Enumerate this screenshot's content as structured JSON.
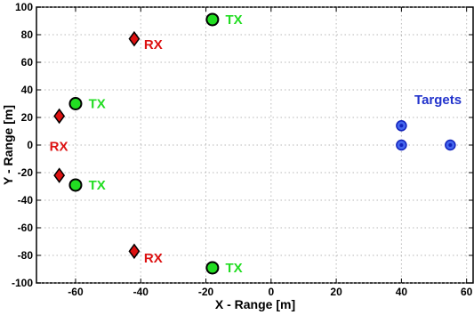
{
  "chart_data": {
    "type": "scatter",
    "xlabel": "X - Range [m]",
    "ylabel": "Y - Range [m]",
    "xlim": [
      -72,
      62
    ],
    "ylim": [
      -100,
      100
    ],
    "xticks": [
      -60,
      -40,
      -20,
      0,
      20,
      40,
      60
    ],
    "yticks": [
      -100,
      -80,
      -60,
      -40,
      -20,
      0,
      20,
      40,
      60,
      80,
      100
    ],
    "grid": true,
    "series": [
      {
        "marker": "circle",
        "fill": "#22dd22",
        "stroke": "#000000",
        "points": [
          {
            "x": -60,
            "y": 30
          },
          {
            "x": -60,
            "y": -29
          },
          {
            "x": -18,
            "y": 91
          },
          {
            "x": -18,
            "y": -89
          }
        ]
      },
      {
        "marker": "diamond",
        "fill": "#dd1111",
        "stroke": "#000000",
        "points": [
          {
            "x": -65,
            "y": 21
          },
          {
            "x": -65,
            "y": -22
          },
          {
            "x": -42,
            "y": 77
          },
          {
            "x": -42,
            "y": -77
          }
        ]
      },
      {
        "marker": "target",
        "fill": "#4466ee",
        "stroke": "#1122bb",
        "points": [
          {
            "x": 40,
            "y": 14
          },
          {
            "x": 40,
            "y": 0
          },
          {
            "x": 55,
            "y": 0
          }
        ]
      }
    ],
    "annotations": [
      {
        "text": "TX",
        "x": -56,
        "y": 30,
        "color": "#22dd22"
      },
      {
        "text": "TX",
        "x": -56,
        "y": -29,
        "color": "#22dd22"
      },
      {
        "text": "TX",
        "x": -14,
        "y": 91,
        "color": "#22dd22"
      },
      {
        "text": "TX",
        "x": -14,
        "y": -89,
        "color": "#22dd22"
      },
      {
        "text": "RX",
        "x": -39,
        "y": 73,
        "color": "#dd1111"
      },
      {
        "text": "RX",
        "x": -39,
        "y": -82,
        "color": "#dd1111"
      },
      {
        "text": "RX",
        "x": -68,
        "y": -1,
        "color": "#dd1111"
      },
      {
        "text": "Targets",
        "x": 44,
        "y": 33,
        "color": "#2233cc"
      }
    ]
  }
}
